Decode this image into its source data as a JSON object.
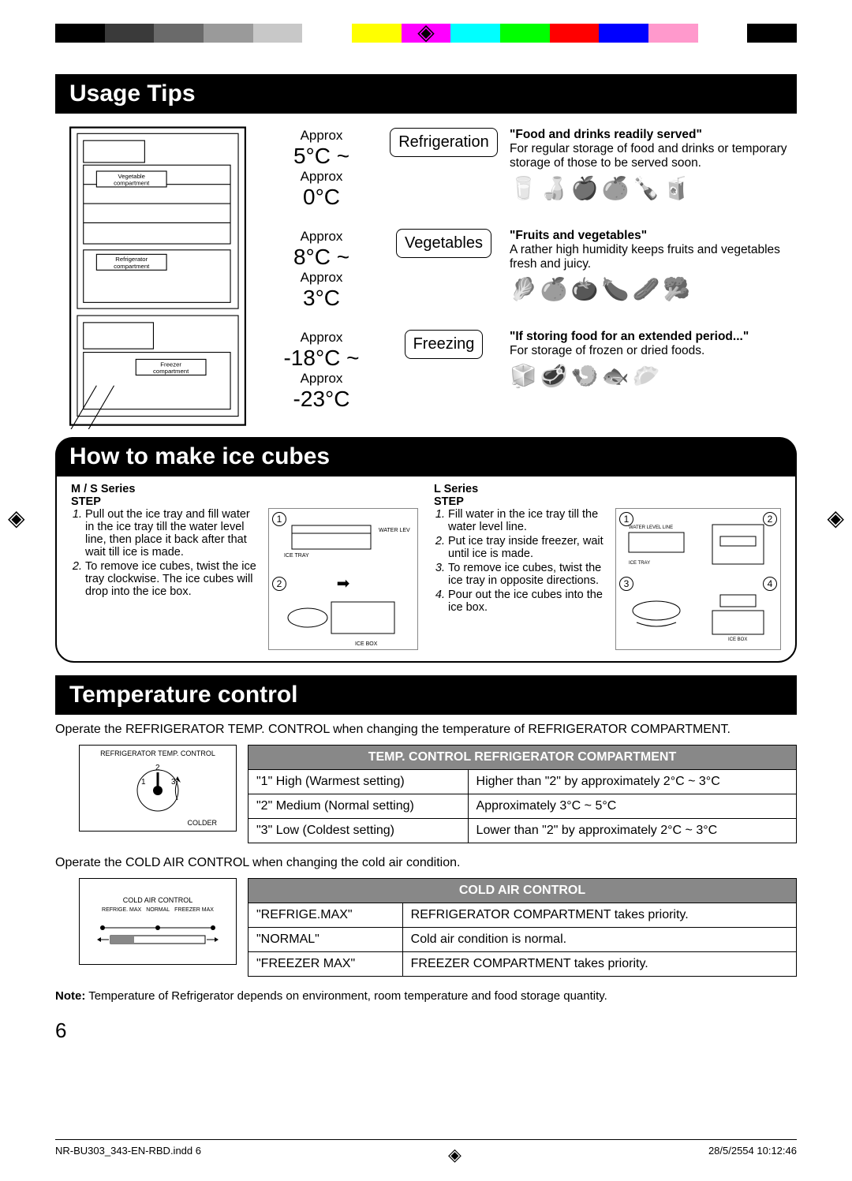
{
  "colorbar": [
    "#000000",
    "#3a3a3a",
    "#6a6a6a",
    "#9a9a9a",
    "#c8c8c8",
    "#ffffff",
    "#ffff00",
    "#ff00ff",
    "#00ffff",
    "#00ff00",
    "#ff0000",
    "#0000ff",
    "#ff99cc",
    "#ffffff",
    "#000000"
  ],
  "sections": {
    "usage_title": "Usage Tips",
    "ice_title": "How to make ice cubes",
    "temp_title": "Temperature control"
  },
  "fridge_labels": {
    "veg": "Vegetable compartment",
    "refrig": "Refrigerator compartment",
    "freezer": "Freezer compartment"
  },
  "usage": [
    {
      "approx1": "Approx",
      "t1": "5°C ~",
      "approx2": "Approx",
      "t2": "0°C",
      "label": "Refrigeration",
      "heading": "\"Food and drinks readily served\"",
      "desc": "For regular storage of food and drinks or temporary storage of those to be served soon.",
      "icons": "🥛🍶🍎🍊🍾🧃"
    },
    {
      "approx1": "Approx",
      "t1": "8°C ~",
      "approx2": "Approx",
      "t2": "3°C",
      "label": "Vegetables",
      "heading": "\"Fruits and vegetables\"",
      "desc": "A rather high humidity keeps fruits and vegetables fresh and juicy.",
      "icons": "🥬🍊🍅🍆🥒🥦"
    },
    {
      "approx1": "Approx",
      "t1": "-18°C ~",
      "approx2": "Approx",
      "t2": "-23°C",
      "label": "Freezing",
      "heading": "\"If storing food for an extended period...\"",
      "desc": "For storage of frozen or dried foods.",
      "icons": "🧊🥩🍤🐟🥟"
    }
  ],
  "ice": {
    "ms": {
      "series": "M / S Series",
      "step": "STEP",
      "steps": [
        "Pull out the ice tray and fill water in the ice tray till the water level line, then place it back after that wait till ice is made.",
        "To remove ice cubes, twist the ice tray clockwise. The ice cubes will drop into the ice box."
      ],
      "dia_labels": {
        "water": "WATER LEVEL LINE",
        "tray": "ICE TRAY",
        "box": "ICE BOX"
      }
    },
    "l": {
      "series": "L Series",
      "step": "STEP",
      "steps": [
        "Fill water in the ice tray till the water level line.",
        "Put ice tray inside freezer, wait until ice is made.",
        "To remove ice cubes, twist the ice tray in opposite directions.",
        "Pour out the ice cubes into the ice box."
      ],
      "dia_labels": {
        "water": "WATER LEVEL LINE",
        "tray": "ICE TRAY",
        "box": "ICE BOX"
      }
    }
  },
  "tempcontrol": {
    "intro1": "Operate the REFRIGERATOR TEMP. CONTROL when changing the temperature of REFRIGERATOR COMPARTMENT.",
    "dial1_title": "REFRIGERATOR TEMP. CONTROL",
    "dial1_colder": "COLDER",
    "table1_header": "TEMP. CONTROL REFRIGERATOR COMPARTMENT",
    "table1": [
      [
        "\"1\" High (Warmest setting)",
        "Higher than \"2\" by approximately 2°C ~ 3°C"
      ],
      [
        "\"2\" Medium (Normal setting)",
        "Approximately 3°C ~ 5°C"
      ],
      [
        "\"3\" Low (Coldest setting)",
        "Lower than \"2\" by approximately 2°C ~ 3°C"
      ]
    ],
    "intro2": "Operate the COLD AIR CONTROL when changing the cold air condition.",
    "dial2_title": "COLD AIR CONTROL",
    "dial2_labels": {
      "l": "REFRIGE. MAX",
      "m": "NORMAL",
      "r": "FREEZER MAX"
    },
    "table2_header": "COLD AIR CONTROL",
    "table2": [
      [
        "\"REFRIGE.MAX\"",
        "REFRIGERATOR COMPARTMENT takes priority."
      ],
      [
        "\"NORMAL\"",
        "Cold air condition is normal."
      ],
      [
        "\"FREEZER MAX\"",
        "FREEZER COMPARTMENT takes priority."
      ]
    ],
    "note_label": "Note:",
    "note": " Temperature of Refrigerator depends on environment, room temperature and food storage quantity."
  },
  "page_num": "6",
  "footer": {
    "file": "NR-BU303_343-EN-RBD.indd   6",
    "date": "28/5/2554   10:12:46"
  }
}
